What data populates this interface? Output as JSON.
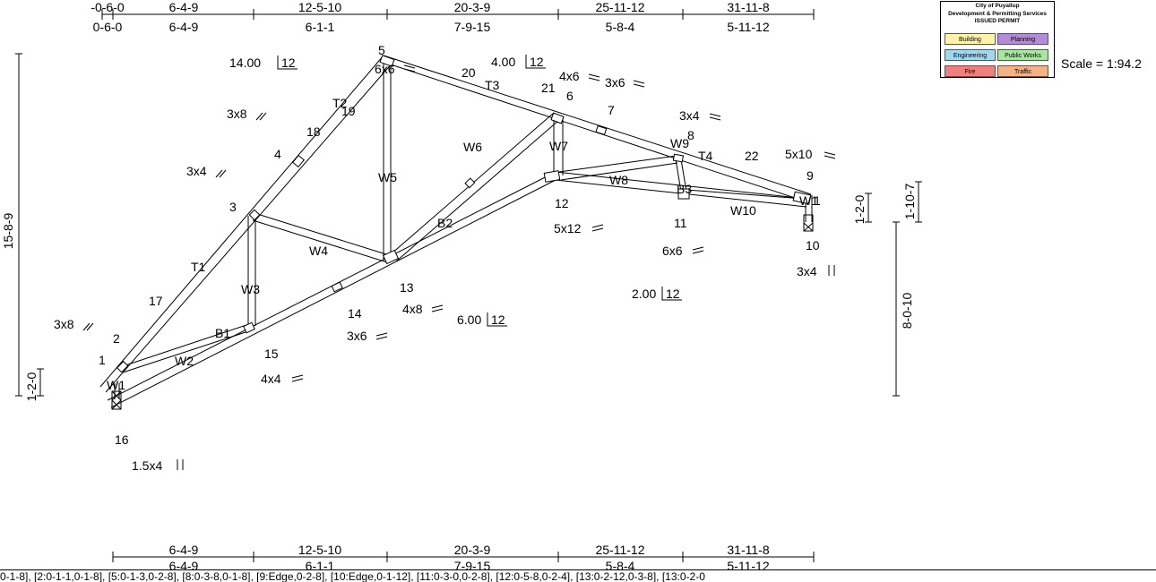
{
  "top_dims": {
    "row1": [
      "-0-6-0",
      "6-4-9",
      "12-5-10",
      "20-3-9",
      "25-11-12",
      "31-11-8"
    ],
    "row2": [
      "0-6-0",
      "6-4-9",
      "6-1-1",
      "7-9-15",
      "5-8-4",
      "5-11-12"
    ]
  },
  "bottom_dims": {
    "row1": [
      "6-4-9",
      "12-5-10",
      "20-3-9",
      "25-11-12",
      "31-11-8"
    ],
    "row2": [
      "6-4-9",
      "6-1-1",
      "7-9-15",
      "5-8-4",
      "5-11-12"
    ]
  },
  "slopes": {
    "top_left": {
      "num": "14.00",
      "den": "12"
    },
    "top_right": {
      "num": "4.00",
      "den": "12"
    },
    "bottom_left": {
      "num": "6.00",
      "den": "12"
    },
    "bottom_right": {
      "num": "2.00",
      "den": "12"
    }
  },
  "vertical_dims": {
    "left_total": "15-8-9",
    "left_heel": "1-2-0",
    "right_heel_a": "1-2-0",
    "right_heel_b": "1-10-7",
    "right_height": "8-0-10"
  },
  "members": {
    "t1": "T1",
    "t2": "T2",
    "t3": "T3",
    "t4": "T4",
    "b1": "B1",
    "b2": "B2",
    "b3": "B3",
    "w1l": "W1",
    "w1r": "W1",
    "w2": "W2",
    "w3": "W3",
    "w4": "W4",
    "w5": "W5",
    "w6": "W6",
    "w7": "W7",
    "w8": "W8",
    "w9": "W9",
    "w10": "W10"
  },
  "nodes": {
    "n1": "1",
    "n2": "2",
    "n3": "3",
    "n4": "4",
    "n5": "5",
    "n6": "6",
    "n7": "7",
    "n8": "8",
    "n9": "9",
    "n10": "10",
    "n11": "11",
    "n12": "12",
    "n13": "13",
    "n14": "14",
    "n15": "15",
    "n16": "16",
    "n17": "17",
    "n18": "18",
    "n19": "19",
    "n20": "20",
    "n21": "21",
    "n22": "22"
  },
  "plates": {
    "p_3x8_left": "3x8",
    "p_3x8_mid": "3x8",
    "p_3x4_left": "3x4",
    "p_6x6_top": "6x6",
    "p_4x6": "4x6",
    "p_3x6_top": "3x6",
    "p_3x4_right": "3x4",
    "p_5x10": "5x10",
    "p_5x12": "5x12",
    "p_6x6_mid": "6x6",
    "p_3x4_bottom": "3x4",
    "p_4x8": "4x8",
    "p_3x6_bottom": "3x6",
    "p_4x4": "4x4",
    "p_1_5x4": "1.5x4"
  },
  "permit": {
    "line1": "City of Puyallup",
    "line2": "Development & Permitting Services",
    "line3": "ISSUED PERMIT",
    "cells": [
      {
        "label": "Building",
        "color": "#fff3a8"
      },
      {
        "label": "Planning",
        "color": "#b48bd6"
      },
      {
        "label": "Engineering",
        "color": "#9fd8f0"
      },
      {
        "label": "Public Works",
        "color": "#a8e6a0"
      },
      {
        "label": "Fire",
        "color": "#f08080"
      },
      {
        "label": "Traffic",
        "color": "#f4b183"
      }
    ]
  },
  "scale_label": "Scale = 1:94.2",
  "bottom_text": "0-1-8], [2:0-1-1,0-1-8], [5:0-1-3,0-2-8], [8:0-3-8,0-1-8], [9:Edge,0-2-8], [10:Edge,0-1-12], [11:0-3-0,0-2-8], [12:0-5-8,0-2-4], [13:0-2-12,0-3-8], [13:0-2-0"
}
